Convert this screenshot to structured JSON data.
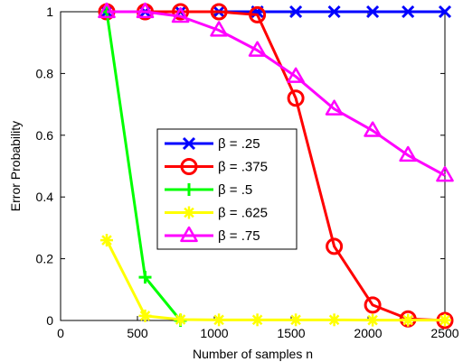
{
  "chart_data": {
    "type": "line",
    "xlabel": "Number of samples n",
    "ylabel": "Error Probability",
    "xlim": [
      0,
      2500
    ],
    "ylim": [
      0,
      1
    ],
    "xticks": [
      "0",
      "500",
      "1000",
      "1500",
      "2000",
      "2500"
    ],
    "yticks": [
      "0",
      "0.2",
      "0.4",
      "0.6",
      "0.8",
      "1"
    ],
    "grid": false,
    "legend_position": "center",
    "series": [
      {
        "name": "β = .25",
        "color": "#0000ff",
        "marker": "x-mark",
        "x": [
          300,
          550,
          780,
          1030,
          1280,
          1530,
          1780,
          2030,
          2260,
          2500
        ],
        "y": [
          1,
          1,
          1,
          1,
          1,
          1,
          1,
          1,
          1,
          1
        ]
      },
      {
        "name": "β = .375",
        "color": "#ff0000",
        "marker": "circle",
        "x": [
          300,
          550,
          780,
          1030,
          1280,
          1530,
          1780,
          2030,
          2260,
          2500
        ],
        "y": [
          1,
          1,
          1,
          1,
          0.99,
          0.72,
          0.24,
          0.05,
          0.005,
          0.0
        ]
      },
      {
        "name": "β = .5",
        "color": "#00ff00",
        "marker": "plus",
        "x": [
          300,
          550,
          780
        ],
        "y": [
          1,
          0.14,
          0.0
        ]
      },
      {
        "name": "β = .625",
        "color": "#ffff00",
        "marker": "asterisk",
        "x": [
          300,
          550,
          780,
          1030,
          1280,
          1530,
          1780,
          2030,
          2260,
          2500
        ],
        "y": [
          0.26,
          0.015,
          0.003,
          0.002,
          0.002,
          0.002,
          0.002,
          0.001,
          0.001,
          0.001
        ]
      },
      {
        "name": "β = .75",
        "color": "#ff00ff",
        "marker": "triangle",
        "x": [
          300,
          550,
          780,
          1030,
          1280,
          1530,
          1780,
          2030,
          2260,
          2500
        ],
        "y": [
          1,
          1,
          0.985,
          0.94,
          0.875,
          0.79,
          0.685,
          0.615,
          0.535,
          0.47
        ]
      }
    ]
  }
}
